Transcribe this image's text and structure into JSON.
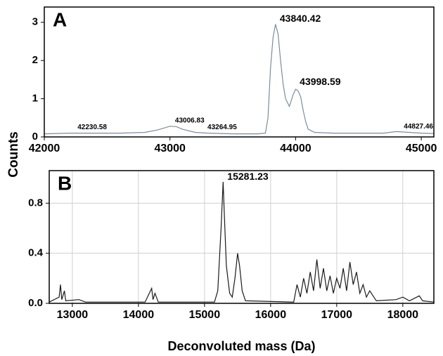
{
  "chart_data": [
    {
      "type": "line",
      "title": "A",
      "ylabel": "Counts",
      "color": "#7d8c9b",
      "x": [
        42000,
        42200,
        42400,
        42600,
        42800,
        42900,
        43000,
        43050,
        43100,
        43200,
        43300,
        43500,
        43700,
        43760,
        43780,
        43800,
        43820,
        43840,
        43860,
        43880,
        43900,
        43920,
        43950,
        43980,
        44000,
        44020,
        44040,
        44060,
        44080,
        44100,
        44150,
        44300,
        44500,
        44700,
        44800,
        44900,
        45000,
        45100
      ],
      "values": [
        0.08,
        0.1,
        0.1,
        0.1,
        0.12,
        0.18,
        0.28,
        0.27,
        0.2,
        0.12,
        0.1,
        0.08,
        0.08,
        0.1,
        0.5,
        1.8,
        2.6,
        2.95,
        2.7,
        2.0,
        1.4,
        1.0,
        0.8,
        1.1,
        1.25,
        1.2,
        1.05,
        0.7,
        0.4,
        0.2,
        0.12,
        0.1,
        0.1,
        0.1,
        0.14,
        0.12,
        0.1,
        0.09
      ],
      "xlim": [
        42000,
        45100
      ],
      "ylim": [
        0,
        3.4
      ],
      "xticks": [
        42000,
        43000,
        44000,
        45000
      ],
      "yticks": [
        0,
        1,
        2,
        3
      ],
      "grid": false,
      "annotations": [
        {
          "label": "42230.58",
          "x": 42230.58,
          "y": 0.12
        },
        {
          "label": "43006.83",
          "x": 43006.83,
          "y": 0.3
        },
        {
          "label": "43264.95",
          "x": 43264.95,
          "y": 0.12
        },
        {
          "label": "43840.42",
          "x": 43840.42,
          "y": 2.95
        },
        {
          "label": "43998.59",
          "x": 43998.59,
          "y": 1.3
        },
        {
          "label": "44827.46",
          "x": 44827.46,
          "y": 0.14
        }
      ]
    },
    {
      "type": "line",
      "title": "B",
      "xlabel": "Deconvoluted mass (Da)",
      "color": "#1a1a1a",
      "x": [
        12650,
        12800,
        12820,
        12840,
        12880,
        12900,
        13100,
        13200,
        14100,
        14200,
        14220,
        14250,
        14300,
        15150,
        15200,
        15250,
        15281,
        15300,
        15330,
        15380,
        15420,
        15460,
        15500,
        15530,
        15570,
        15620,
        16350,
        16400,
        16450,
        16500,
        16550,
        16600,
        16650,
        16700,
        16750,
        16800,
        16850,
        16900,
        16950,
        17000,
        17050,
        17100,
        17150,
        17200,
        17250,
        17300,
        17350,
        17400,
        17450,
        17500,
        17600,
        17900,
        18000,
        18100,
        18250,
        18300,
        18470
      ],
      "values": [
        0.01,
        0.05,
        0.15,
        0.03,
        0.1,
        0.02,
        0.03,
        0.01,
        0.01,
        0.12,
        0.03,
        0.08,
        0.01,
        0.01,
        0.1,
        0.6,
        0.97,
        0.7,
        0.3,
        0.08,
        0.05,
        0.2,
        0.4,
        0.3,
        0.1,
        0.02,
        0.01,
        0.15,
        0.05,
        0.2,
        0.08,
        0.25,
        0.1,
        0.35,
        0.12,
        0.28,
        0.1,
        0.22,
        0.08,
        0.2,
        0.12,
        0.28,
        0.1,
        0.33,
        0.15,
        0.25,
        0.08,
        0.15,
        0.05,
        0.1,
        0.02,
        0.03,
        0.05,
        0.02,
        0.06,
        0.02,
        0.01
      ],
      "xlim": [
        12650,
        18470
      ],
      "ylim": [
        0,
        1.06
      ],
      "xticks": [
        13000,
        14000,
        15000,
        16000,
        17000,
        18000
      ],
      "yticks": [
        {
          "value": 0,
          "label": "0.0"
        },
        0.4,
        0.8
      ],
      "grid": true,
      "annotations": [
        {
          "label": "15281.23",
          "x": 15281.23,
          "y": 0.97
        }
      ]
    }
  ]
}
